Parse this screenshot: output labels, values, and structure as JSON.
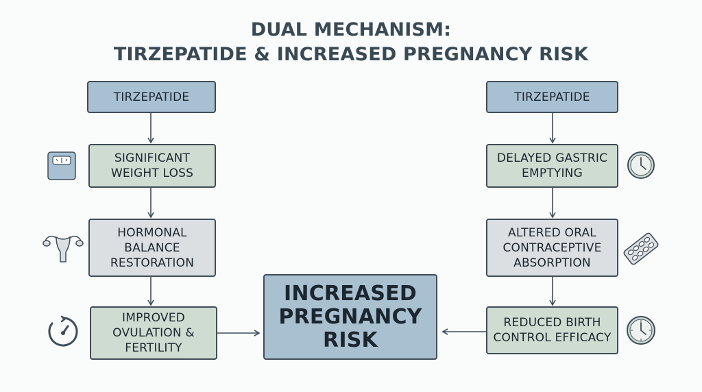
{
  "title": {
    "line1": "DUAL MECHANISM:",
    "line2": "TIRZEPATIDE & INCREASED PREGNANCY RISK"
  },
  "left_chain": {
    "start": "TIRZEPATIDE",
    "step1": "SIGNIFICANT\nWEIGHT LOSS",
    "step2": "HORMONAL\nBALANCE\nRESTORATION",
    "step3": "IMPROVED\nOVULATION &\nFERTILITY"
  },
  "right_chain": {
    "start": "TIRZEPATIDE",
    "step1": "DELAYED GASTRIC\nEMPTYING",
    "step2": "ALTERED ORAL\nCONTRACEPTIVE\nABSORPTION",
    "step3": "REDUCED BIRTH\nCONTROL EFFICACY"
  },
  "outcome": "INCREASED\nPREGNANCY\nRISK",
  "icons": {
    "left": [
      "scale-icon",
      "uterus-icon",
      "cycle-gauge-icon"
    ],
    "right": [
      "clock-icon",
      "pill-pack-icon",
      "clock-icon"
    ]
  },
  "colors": {
    "blue": "#a8c0d1",
    "green": "#cfdcd2",
    "gray": "#dcdfe1",
    "border": "#3e4d58"
  }
}
